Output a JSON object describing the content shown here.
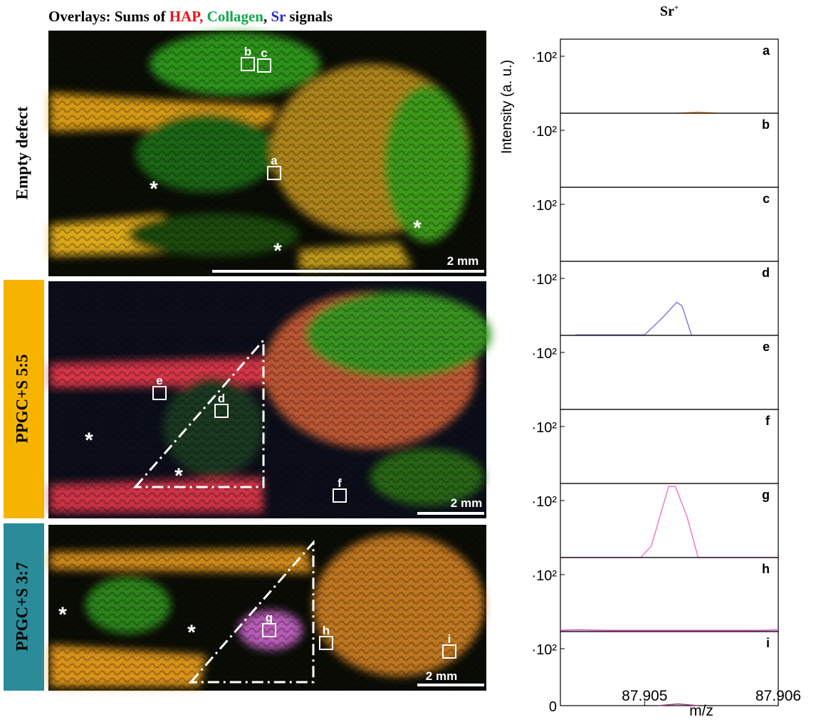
{
  "figure": {
    "title_parts": [
      {
        "text": "Overlays: Sums of ",
        "color": "#000000"
      },
      {
        "text": "HAP,",
        "color": "#e8121b"
      },
      {
        "text": " Collagen",
        "color": "#0fa84a"
      },
      {
        "text": ",",
        "color": "#000000"
      },
      {
        "text": " Sr",
        "color": "#2a2ad0"
      },
      {
        "text": " signals",
        "color": "#000000"
      }
    ],
    "rows": [
      {
        "label": "Empty defect",
        "boxes": [
          "b",
          "c",
          "a"
        ],
        "scale_bar": "2 mm"
      },
      {
        "label": "PPGC+S 5:5",
        "boxes": [
          "e",
          "d",
          "f"
        ],
        "scale_bar": "2 mm"
      },
      {
        "label": "PPGC+S 3:7",
        "boxes": [
          "g",
          "h",
          "i"
        ],
        "scale_bar": "2 mm"
      }
    ],
    "asterisk": "*"
  },
  "spectra": {
    "title": "Sr",
    "title_sup": "+",
    "ylabel": "Intensity (a. u.)",
    "xlabel": "m/z",
    "xlim": [
      87.90437,
      87.906
    ],
    "xticks": [
      87.905,
      87.906
    ],
    "ylim": [
      0,
      130
    ],
    "yticks": [
      {
        "value": 100,
        "label": "·10²"
      }
    ],
    "last_yticks": [
      0,
      {
        "value": 100,
        "label": "·10²"
      }
    ]
  },
  "chart_data": [
    {
      "type": "line",
      "panel": "a",
      "series": [
        {
          "color": "#e89a3c",
          "x": [
            87.90525,
            87.9054,
            87.90556
          ],
          "values": [
            0,
            2,
            0
          ]
        }
      ]
    },
    {
      "type": "line",
      "panel": "b",
      "series": []
    },
    {
      "type": "line",
      "panel": "c",
      "series": []
    },
    {
      "type": "line",
      "panel": "d",
      "series": [
        {
          "color": "#7f7fe0",
          "x": [
            87.90448,
            87.9048,
            87.905,
            87.90513,
            87.90524,
            87.90528,
            87.90535
          ],
          "values": [
            1,
            1,
            1,
            30,
            58,
            52,
            1
          ]
        }
      ]
    },
    {
      "type": "line",
      "panel": "e",
      "series": []
    },
    {
      "type": "line",
      "panel": "f",
      "series": []
    },
    {
      "type": "line",
      "panel": "g",
      "series": [
        {
          "color": "#f07cc4",
          "x": [
            87.90437,
            87.90497,
            87.90505,
            87.90518,
            87.90523,
            87.90532,
            87.9054,
            87.906
          ],
          "values": [
            0,
            0,
            20,
            125,
            125,
            70,
            0,
            0
          ]
        }
      ]
    },
    {
      "type": "line",
      "panel": "h",
      "series": [
        {
          "color": "#d03ac0",
          "x": [
            87.90437,
            87.9045,
            87.9047,
            87.9059,
            87.906
          ],
          "values": [
            2,
            3,
            2,
            2,
            3
          ]
        }
      ]
    },
    {
      "type": "line",
      "panel": "i",
      "series": [
        {
          "color": "#a0407e",
          "x": [
            87.9051,
            87.90525,
            87.9054
          ],
          "values": [
            0,
            3,
            0
          ]
        }
      ]
    }
  ]
}
